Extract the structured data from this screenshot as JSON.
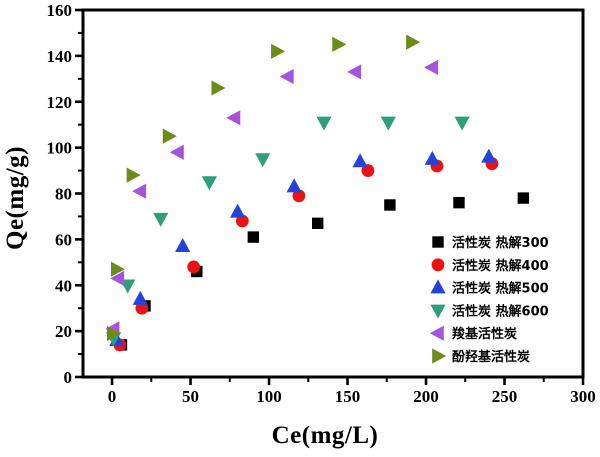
{
  "chart_data": {
    "type": "scatter",
    "title": "",
    "xlabel": "Ce(mg/L)",
    "ylabel": "Qe(mg/g)",
    "xlim": [
      -18.5,
      300
    ],
    "ylim": [
      0,
      160
    ],
    "x_ticks": [
      0,
      50,
      100,
      150,
      200,
      250,
      300
    ],
    "x_minor_ticks": [
      25,
      75,
      125,
      175,
      225,
      275
    ],
    "y_ticks": [
      0,
      20,
      40,
      60,
      80,
      100,
      120,
      140,
      160
    ],
    "y_minor_ticks": [
      10,
      30,
      50,
      70,
      90,
      110,
      130,
      150
    ],
    "grid": false,
    "frame": true,
    "background": "#ffffff",
    "frame_color": "#000000",
    "legend_position": "inside-right-bottom",
    "series": [
      {
        "name": "活性炭  热解300",
        "marker": "square",
        "color": "#000000",
        "points": [
          [
            6,
            14
          ],
          [
            21,
            31
          ],
          [
            54,
            46
          ],
          [
            90,
            61
          ],
          [
            131,
            67
          ],
          [
            177,
            75
          ],
          [
            221,
            76
          ],
          [
            262,
            78
          ]
        ]
      },
      {
        "name": "活性炭  热解400",
        "marker": "circle",
        "color": "#ee1111",
        "points": [
          [
            5,
            14
          ],
          [
            19,
            30
          ],
          [
            52,
            48
          ],
          [
            83,
            68
          ],
          [
            119,
            79
          ],
          [
            163,
            90
          ],
          [
            207,
            92
          ],
          [
            242,
            93
          ]
        ]
      },
      {
        "name": "活性炭  热解500",
        "marker": "triangle-up",
        "color": "#2643d9",
        "points": [
          [
            3,
            16
          ],
          [
            18,
            34
          ],
          [
            45,
            57
          ],
          [
            80,
            72
          ],
          [
            116,
            83
          ],
          [
            158,
            94
          ],
          [
            204,
            95
          ],
          [
            240,
            96
          ]
        ]
      },
      {
        "name": "活性炭  热解600",
        "marker": "triangle-down",
        "color": "#2d9f7c",
        "points": [
          [
            1,
            17
          ],
          [
            10,
            40
          ],
          [
            31,
            69
          ],
          [
            62,
            85
          ],
          [
            96,
            95
          ],
          [
            135,
            111
          ],
          [
            176,
            111
          ],
          [
            223,
            111
          ]
        ]
      },
      {
        "name": "羧基活性炭",
        "marker": "triangle-left",
        "color": "#a653e0",
        "points": [
          [
            1,
            21
          ],
          [
            4,
            43
          ],
          [
            18,
            81
          ],
          [
            42,
            98
          ],
          [
            78,
            113
          ],
          [
            112,
            131
          ],
          [
            155,
            133
          ],
          [
            204,
            135
          ]
        ]
      },
      {
        "name": "酚羟基活性炭",
        "marker": "triangle-right",
        "color": "#6d8b18",
        "points": [
          [
            0.5,
            19
          ],
          [
            3,
            47
          ],
          [
            13,
            88
          ],
          [
            36,
            105
          ],
          [
            67,
            126
          ],
          [
            105,
            142
          ],
          [
            144,
            145
          ],
          [
            191,
            146
          ]
        ]
      }
    ]
  }
}
